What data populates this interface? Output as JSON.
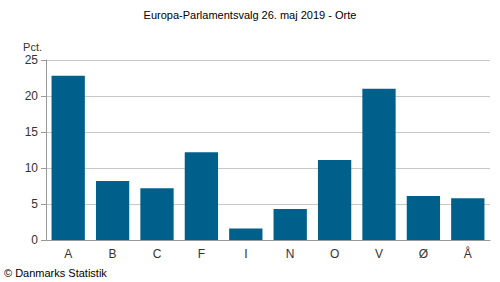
{
  "chart_data": {
    "type": "bar",
    "title": "Europa-Parlamentsvalg 26. maj 2019 - Orte",
    "y_label": "Pct.",
    "source": "© Danmarks Statistik",
    "categories": [
      "A",
      "B",
      "C",
      "F",
      "I",
      "N",
      "O",
      "V",
      "Ø",
      "Å"
    ],
    "values": [
      22.8,
      8.2,
      7.2,
      12.2,
      1.6,
      4.3,
      11.1,
      21.0,
      6.1,
      5.8
    ],
    "color": "#00608c",
    "ylim": [
      0,
      25
    ],
    "yticks": [
      0,
      5,
      10,
      15,
      20,
      25
    ],
    "grid": true
  }
}
